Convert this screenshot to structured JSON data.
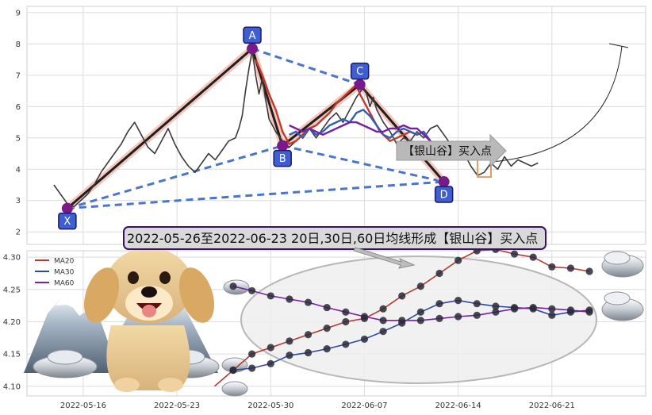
{
  "chart_data": [
    {
      "type": "line",
      "title": "",
      "xlabel": "",
      "ylabel": "",
      "ylim": [
        1.6,
        9.2
      ],
      "yticks": [
        2,
        3,
        4,
        5,
        6,
        7,
        8,
        9
      ],
      "grid": true,
      "series": [
        {
          "values": [
            [
              0,
              3.5
            ],
            [
              2,
              3.2
            ],
            [
              4,
              2.9
            ],
            [
              6,
              2.8
            ],
            [
              8,
              3.0
            ],
            [
              10,
              3.2
            ],
            [
              12,
              3.5
            ],
            [
              14,
              3.9
            ],
            [
              16,
              4.2
            ],
            [
              18,
              4.5
            ],
            [
              20,
              4.8
            ],
            [
              22,
              5.2
            ],
            [
              24,
              5.5
            ],
            [
              26,
              5.1
            ],
            [
              28,
              4.7
            ],
            [
              30,
              4.5
            ],
            [
              32,
              4.9
            ],
            [
              34,
              5.3
            ],
            [
              36,
              4.8
            ],
            [
              38,
              4.4
            ],
            [
              40,
              4.1
            ],
            [
              42,
              3.9
            ],
            [
              44,
              4.2
            ],
            [
              46,
              4.5
            ],
            [
              48,
              4.3
            ],
            [
              50,
              4.6
            ],
            [
              52,
              4.9
            ],
            [
              54,
              5.0
            ],
            [
              55,
              5.3
            ],
            [
              56,
              5.7
            ],
            [
              57,
              6.5
            ],
            [
              58,
              7.2
            ],
            [
              59,
              7.8
            ],
            [
              60,
              7.0
            ],
            [
              61,
              6.4
            ],
            [
              62,
              6.9
            ],
            [
              63,
              6.2
            ],
            [
              64,
              5.6
            ],
            [
              66,
              5.2
            ],
            [
              68,
              4.9
            ],
            [
              70,
              4.7
            ],
            [
              72,
              4.9
            ],
            [
              74,
              5.1
            ],
            [
              76,
              5.3
            ],
            [
              78,
              5.0
            ],
            [
              80,
              5.3
            ],
            [
              82,
              5.6
            ],
            [
              84,
              5.8
            ],
            [
              86,
              5.5
            ],
            [
              88,
              5.9
            ],
            [
              90,
              6.3
            ],
            [
              92,
              6.6
            ],
            [
              93,
              6.4
            ],
            [
              94,
              6.0
            ],
            [
              95,
              6.3
            ],
            [
              96,
              5.9
            ],
            [
              98,
              5.5
            ],
            [
              100,
              5.2
            ],
            [
              102,
              4.8
            ],
            [
              104,
              5.0
            ],
            [
              106,
              4.9
            ],
            [
              108,
              5.2
            ],
            [
              110,
              5.0
            ],
            [
              112,
              5.3
            ],
            [
              114,
              5.4
            ],
            [
              116,
              5.1
            ],
            [
              118,
              4.8
            ],
            [
              120,
              4.6
            ],
            [
              122,
              4.5
            ],
            [
              124,
              4.1
            ],
            [
              126,
              3.8
            ],
            [
              128,
              3.9
            ],
            [
              130,
              4.2
            ],
            [
              132,
              4.0
            ],
            [
              134,
              4.4
            ],
            [
              136,
              4.1
            ],
            [
              138,
              4.3
            ],
            [
              140,
              4.2
            ],
            [
              142,
              4.1
            ],
            [
              144,
              4.2
            ]
          ]
        },
        {
          "values": [
            [
              60,
              7.5
            ],
            [
              62,
              7.0
            ],
            [
              64,
              6.4
            ],
            [
              66,
              5.9
            ],
            [
              68,
              5.2
            ],
            [
              70,
              4.8
            ],
            [
              72,
              4.9
            ],
            [
              74,
              5.1
            ],
            [
              76,
              5.3
            ],
            [
              78,
              5.4
            ],
            [
              80,
              5.6
            ],
            [
              82,
              5.8
            ],
            [
              84,
              6.1
            ],
            [
              86,
              6.3
            ],
            [
              88,
              6.5
            ],
            [
              90,
              6.7
            ],
            [
              91,
              6.4
            ],
            [
              93,
              6.0
            ],
            [
              95,
              5.6
            ],
            [
              97,
              5.2
            ],
            [
              100,
              4.9
            ],
            [
              102,
              5.0
            ],
            [
              104,
              5.1
            ],
            [
              106,
              5.2
            ],
            [
              108,
              5.1
            ],
            [
              110,
              5.2
            ]
          ]
        },
        {
          "values": [
            [
              70,
              5.1
            ],
            [
              72,
              5.2
            ],
            [
              74,
              5.0
            ],
            [
              76,
              5.3
            ],
            [
              78,
              5.1
            ],
            [
              80,
              5.2
            ],
            [
              82,
              5.4
            ],
            [
              84,
              5.5
            ],
            [
              86,
              5.6
            ],
            [
              88,
              5.5
            ],
            [
              90,
              5.8
            ],
            [
              92,
              5.9
            ],
            [
              94,
              5.7
            ],
            [
              96,
              5.4
            ],
            [
              98,
              5.1
            ],
            [
              100,
              5.0
            ],
            [
              102,
              5.2
            ],
            [
              104,
              5.3
            ],
            [
              106,
              5.2
            ],
            [
              108,
              5.1
            ],
            [
              110,
              5.2
            ],
            [
              112,
              4.9
            ],
            [
              114,
              4.6
            ],
            [
              116,
              4.4
            ]
          ]
        },
        {
          "values": [
            [
              70,
              5.4
            ],
            [
              72,
              5.3
            ],
            [
              74,
              5.2
            ],
            [
              76,
              5.3
            ],
            [
              78,
              5.2
            ],
            [
              80,
              5.1
            ],
            [
              82,
              5.2
            ],
            [
              84,
              5.3
            ],
            [
              86,
              5.4
            ],
            [
              88,
              5.5
            ],
            [
              90,
              5.5
            ],
            [
              92,
              5.4
            ],
            [
              94,
              5.3
            ],
            [
              96,
              5.2
            ],
            [
              98,
              5.2
            ],
            [
              100,
              5.3
            ],
            [
              102,
              5.3
            ],
            [
              104,
              5.4
            ],
            [
              106,
              5.3
            ],
            [
              108,
              5.3
            ],
            [
              110,
              5.1
            ],
            [
              112,
              4.9
            ],
            [
              114,
              4.7
            ],
            [
              116,
              4.6
            ]
          ]
        }
      ],
      "waves": {
        "points": [
          {
            "label": "X",
            "x": 4,
            "y": 2.75
          },
          {
            "label": "A",
            "x": 59,
            "y": 7.85
          },
          {
            "label": "B",
            "x": 68,
            "y": 4.75
          },
          {
            "label": "C",
            "x": 91,
            "y": 6.7
          },
          {
            "label": "D",
            "x": 116,
            "y": 3.6
          }
        ],
        "pair_x_b": [
          "X",
          "B"
        ],
        "pair_a_c": [
          "A",
          "C"
        ],
        "pair_x_d": [
          "X",
          "D"
        ],
        "pair_b_d": [
          "B",
          "D"
        ]
      },
      "target_box": {
        "x0": 126,
        "x1": 130,
        "y0": 3.75,
        "y1": 4.75
      },
      "callout": "【银山谷】买入点",
      "banner": "2022-05-26至2022-06-23 20日,30日,60日均线形成【银山谷】买入点"
    },
    {
      "type": "line",
      "title": "",
      "xlabel": "",
      "ylabel": "",
      "ylim": [
        4.085,
        4.31
      ],
      "yticks": [
        4.1,
        4.15,
        4.2,
        4.25,
        4.3
      ],
      "grid": true,
      "categories": [
        "2022-05-16",
        "2022-05-23",
        "2022-05-30",
        "2022-06-07",
        "2022-06-14",
        "2022-06-21"
      ],
      "category_index": [
        3,
        8,
        13,
        18,
        23,
        28
      ],
      "legend_position": "top-left",
      "series": [
        {
          "name": "MA20",
          "color": "#b03a2e",
          "x": [
            10,
            11,
            12,
            13,
            14,
            15,
            16,
            17,
            18,
            19,
            20,
            21,
            22,
            23,
            24,
            25,
            26,
            27,
            28,
            29,
            30
          ],
          "values": [
            4.1,
            4.125,
            4.15,
            4.16,
            4.17,
            4.18,
            4.19,
            4.2,
            4.205,
            4.22,
            4.24,
            4.255,
            4.275,
            4.295,
            4.31,
            4.312,
            4.305,
            4.3,
            4.285,
            4.283,
            4.278
          ]
        },
        {
          "name": "MA30",
          "color": "#2e4aa0",
          "x": [
            11,
            12,
            13,
            14,
            15,
            16,
            17,
            18,
            19,
            20,
            21,
            22,
            23,
            24,
            25,
            26,
            27,
            28,
            29,
            30
          ],
          "values": [
            4.125,
            4.128,
            4.135,
            4.148,
            4.152,
            4.158,
            4.165,
            4.173,
            4.185,
            4.198,
            4.215,
            4.228,
            4.233,
            4.228,
            4.224,
            4.222,
            4.22,
            4.21,
            4.215,
            4.218
          ]
        },
        {
          "name": "MA60",
          "color": "#7b1fa2",
          "x": [
            11,
            12,
            13,
            14,
            15,
            16,
            17,
            18,
            19,
            20,
            21,
            22,
            23,
            24,
            25,
            26,
            27,
            28,
            29,
            30
          ],
          "values": [
            4.255,
            4.248,
            4.24,
            4.235,
            4.23,
            4.222,
            4.215,
            4.208,
            4.202,
            4.202,
            4.202,
            4.205,
            4.208,
            4.21,
            4.215,
            4.22,
            4.222,
            4.22,
            4.218,
            4.215
          ]
        }
      ],
      "dot_range": [
        11,
        30
      ]
    }
  ],
  "colors": {
    "price": "#3a3a3a",
    "wave_fill": "#f4c0b4",
    "wave_edge": "#1f1f1f",
    "dashed": "#4a76c9",
    "marker": "#7a1a8a",
    "label_fill": "#3f5fd0",
    "label_edge": "#1a1a6a",
    "banner_fill": "#d9d9d9",
    "banner_edge": "#3a1060",
    "arrow": "#b5b5b5",
    "ellipse_fill": "#eeeeee"
  }
}
